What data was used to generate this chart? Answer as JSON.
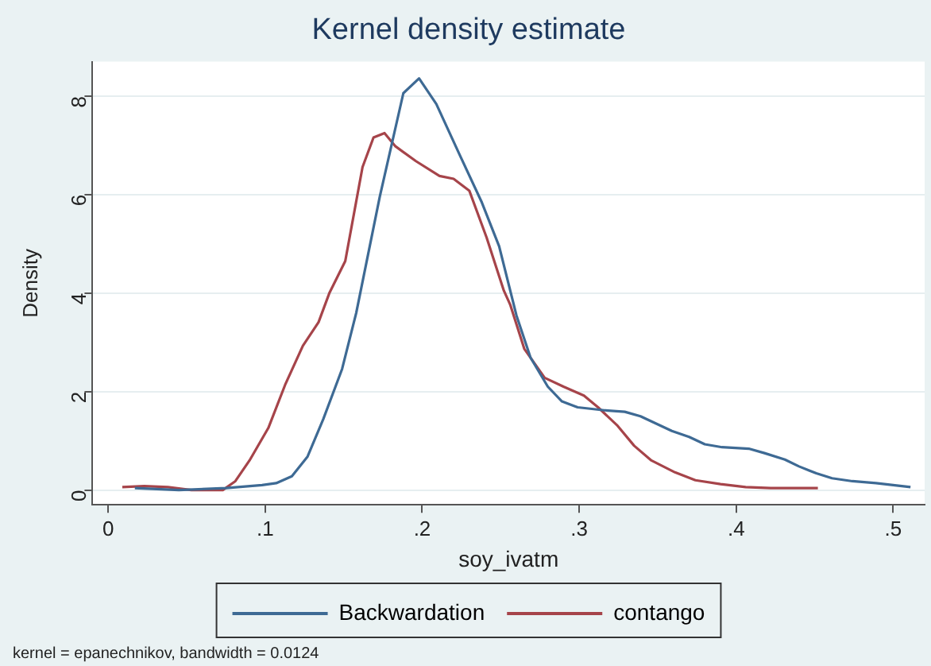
{
  "chart_data": {
    "type": "line",
    "title": "Kernel density estimate",
    "xlabel": "soy_ivatm",
    "ylabel": "Density",
    "annotations": [
      "kernel = epanechnikov, bandwidth = 0.0124"
    ],
    "xlim": [
      -0.01,
      0.52
    ],
    "ylim": [
      -0.3,
      8.7
    ],
    "xticks": [
      0,
      {
        "value": 0.1,
        "label": ".1"
      },
      {
        "value": 0.2,
        "label": ".2"
      },
      {
        "value": 0.3,
        "label": ".3"
      },
      {
        "value": 0.4,
        "label": ".4"
      },
      {
        "value": 0.5,
        "label": ".5"
      }
    ],
    "yticks": [
      0,
      2,
      4,
      6,
      8
    ],
    "grid": "y",
    "legend": "bottom",
    "marker": "none",
    "line_style": "solid",
    "series": [
      {
        "name": "Backwardation",
        "color": "#3e6a94",
        "x": [
          0.017,
          0.045,
          0.075,
          0.098,
          0.107,
          0.117,
          0.127,
          0.137,
          0.149,
          0.158,
          0.173,
          0.188,
          0.198,
          0.209,
          0.224,
          0.238,
          0.249,
          0.26,
          0.269,
          0.28,
          0.289,
          0.299,
          0.316,
          0.329,
          0.339,
          0.359,
          0.37,
          0.38,
          0.391,
          0.408,
          0.418,
          0.431,
          0.44,
          0.451,
          0.461,
          0.474,
          0.489,
          0.5,
          0.511
        ],
        "values": [
          0.04,
          0,
          0.04,
          0.1,
          0.14,
          0.28,
          0.68,
          1.44,
          2.46,
          3.6,
          5.96,
          8.06,
          8.36,
          7.84,
          6.8,
          5.84,
          4.95,
          3.55,
          2.69,
          2.1,
          1.8,
          1.68,
          1.62,
          1.59,
          1.5,
          1.2,
          1.08,
          0.93,
          0.87,
          0.84,
          0.75,
          0.62,
          0.48,
          0.34,
          0.24,
          0.18,
          0.14,
          0.1,
          0.06
        ]
      },
      {
        "name": "contango",
        "color": "#a6444a",
        "x": [
          0.009,
          0.023,
          0.038,
          0.053,
          0.073,
          0.081,
          0.09,
          0.102,
          0.113,
          0.124,
          0.134,
          0.141,
          0.151,
          0.162,
          0.169,
          0.176,
          0.183,
          0.196,
          0.211,
          0.22,
          0.23,
          0.241,
          0.252,
          0.256,
          0.265,
          0.278,
          0.29,
          0.303,
          0.312,
          0.324,
          0.335,
          0.346,
          0.361,
          0.374,
          0.39,
          0.406,
          0.422,
          0.452
        ],
        "values": [
          0.06,
          0.08,
          0.06,
          0,
          0,
          0.18,
          0.6,
          1.26,
          2.16,
          2.93,
          3.41,
          4.01,
          4.65,
          6.56,
          7.16,
          7.25,
          6.98,
          6.68,
          6.38,
          6.32,
          6.08,
          5.13,
          4.05,
          3.77,
          2.87,
          2.28,
          2.1,
          1.92,
          1.68,
          1.32,
          0.9,
          0.6,
          0.36,
          0.2,
          0.12,
          0.06,
          0.04,
          0.04
        ]
      }
    ]
  }
}
